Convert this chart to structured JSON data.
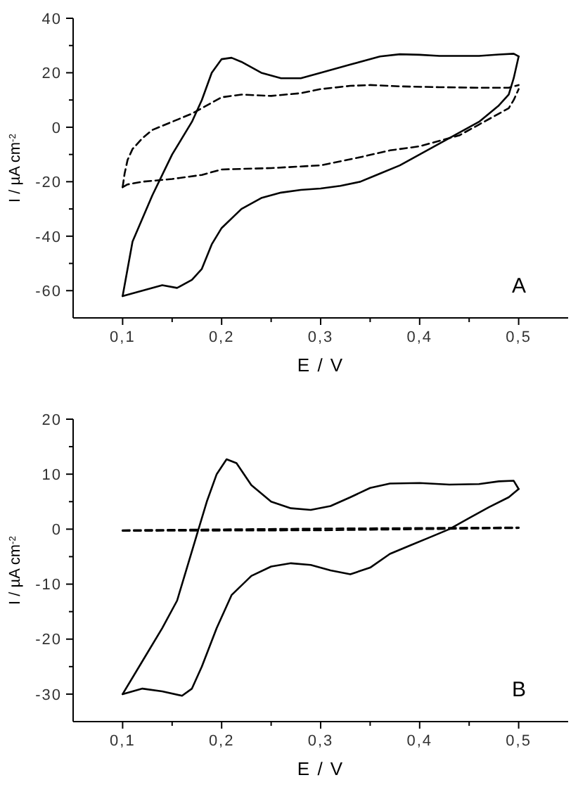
{
  "chart_data": [
    {
      "type": "line",
      "xlabel": "E / V",
      "ylabel": "I / µA cm$^{-2}$",
      "annotations": [
        "A"
      ],
      "xlim": [
        0.05,
        0.55
      ],
      "ylim": [
        -70,
        40
      ],
      "xticks": [
        {
          "value": 0.1,
          "label": "0,1"
        },
        {
          "value": 0.15,
          "label": null
        },
        {
          "value": 0.2,
          "label": "0,2"
        },
        {
          "value": 0.25,
          "label": null
        },
        {
          "value": 0.3,
          "label": "0,3"
        },
        {
          "value": 0.35,
          "label": null
        },
        {
          "value": 0.4,
          "label": "0,4"
        },
        {
          "value": 0.45,
          "label": null
        },
        {
          "value": 0.5,
          "label": "0,5"
        }
      ],
      "yticks": [
        -60,
        {
          "value": -50,
          "label": null
        },
        -40,
        {
          "value": -30,
          "label": null
        },
        -20,
        {
          "value": -10,
          "label": null
        },
        0,
        {
          "value": 10,
          "label": null
        },
        20,
        {
          "value": 30,
          "label": null
        },
        40
      ],
      "grid": false,
      "series": [
        {
          "color": "#000000",
          "line_style": "solid",
          "x": [
            0.1,
            0.11,
            0.13,
            0.15,
            0.17,
            0.18,
            0.19,
            0.2,
            0.21,
            0.22,
            0.24,
            0.26,
            0.28,
            0.3,
            0.33,
            0.36,
            0.38,
            0.4,
            0.42,
            0.46,
            0.48,
            0.495,
            0.5
          ],
          "values": [
            -62,
            -42,
            -25,
            -10,
            2,
            10,
            20,
            25,
            25.5,
            24,
            20,
            18,
            18,
            20,
            23,
            26,
            26.8,
            26.6,
            26.2,
            26.2,
            26.7,
            27,
            26
          ]
        },
        {
          "color": "#000000",
          "line_style": "solid",
          "x": [
            0.1,
            0.12,
            0.14,
            0.155,
            0.17,
            0.18,
            0.19,
            0.2,
            0.22,
            0.24,
            0.26,
            0.28,
            0.3,
            0.32,
            0.34,
            0.36,
            0.38,
            0.4,
            0.42,
            0.44,
            0.46,
            0.48,
            0.49,
            0.495,
            0.5
          ],
          "values": [
            -62,
            -60,
            -58,
            -59,
            -56,
            -52,
            -43,
            -37,
            -30,
            -26,
            -24,
            -23,
            -22.5,
            -21.5,
            -20,
            -17,
            -14,
            -10,
            -6,
            -2,
            2,
            8,
            12,
            18,
            26
          ]
        },
        {
          "color": "#000000",
          "line_style": "dashed",
          "x": [
            0.1,
            0.102,
            0.105,
            0.11,
            0.12,
            0.13,
            0.15,
            0.17,
            0.19,
            0.2,
            0.22,
            0.25,
            0.28,
            0.3,
            0.33,
            0.35,
            0.38,
            0.42,
            0.46,
            0.49,
            0.5
          ],
          "values": [
            -22,
            -17,
            -12,
            -8,
            -4,
            -1,
            2,
            5,
            9,
            11,
            12,
            11.5,
            12.5,
            14,
            15.2,
            15.5,
            15,
            14.7,
            14.5,
            14.5,
            15.5
          ]
        },
        {
          "color": "#000000",
          "line_style": "dashed",
          "x": [
            0.1,
            0.105,
            0.12,
            0.15,
            0.18,
            0.2,
            0.25,
            0.3,
            0.34,
            0.37,
            0.4,
            0.42,
            0.44,
            0.46,
            0.48,
            0.49,
            0.495,
            0.5
          ],
          "values": [
            -22,
            -21,
            -20,
            -19,
            -17.5,
            -15.5,
            -15,
            -14,
            -11,
            -8.5,
            -7,
            -5,
            -3,
            1,
            5,
            7,
            10,
            14
          ]
        }
      ]
    },
    {
      "type": "line",
      "xlabel": "E / V",
      "ylabel": "I / µA cm$^{-2}$",
      "annotations": [
        "B"
      ],
      "xlim": [
        0.05,
        0.55
      ],
      "ylim": [
        -35,
        20
      ],
      "xticks": [
        {
          "value": 0.1,
          "label": "0,1"
        },
        {
          "value": 0.15,
          "label": null
        },
        {
          "value": 0.2,
          "label": "0,2"
        },
        {
          "value": 0.25,
          "label": null
        },
        {
          "value": 0.3,
          "label": "0,3"
        },
        {
          "value": 0.35,
          "label": null
        },
        {
          "value": 0.4,
          "label": "0,4"
        },
        {
          "value": 0.45,
          "label": null
        },
        {
          "value": 0.5,
          "label": "0,5"
        }
      ],
      "yticks": [
        -30,
        {
          "value": -25,
          "label": null
        },
        -20,
        {
          "value": -15,
          "label": null
        },
        -10,
        {
          "value": -5,
          "label": null
        },
        0,
        {
          "value": 5,
          "label": null
        },
        10,
        {
          "value": 15,
          "label": null
        },
        20
      ],
      "grid": false,
      "series": [
        {
          "color": "#000000",
          "line_style": "solid",
          "x": [
            0.1,
            0.12,
            0.14,
            0.155,
            0.165,
            0.175,
            0.185,
            0.195,
            0.205,
            0.215,
            0.23,
            0.25,
            0.27,
            0.29,
            0.31,
            0.33,
            0.35,
            0.37,
            0.4,
            0.43,
            0.46,
            0.48,
            0.495,
            0.5
          ],
          "values": [
            -30,
            -24,
            -18,
            -13,
            -7,
            -1,
            5,
            10,
            12.7,
            12,
            8,
            5,
            3.8,
            3.5,
            4.2,
            5.8,
            7.5,
            8.3,
            8.4,
            8.1,
            8.2,
            8.7,
            8.8,
            7.3
          ]
        },
        {
          "color": "#000000",
          "line_style": "solid",
          "x": [
            0.1,
            0.12,
            0.14,
            0.16,
            0.17,
            0.18,
            0.195,
            0.21,
            0.23,
            0.25,
            0.27,
            0.29,
            0.31,
            0.33,
            0.35,
            0.37,
            0.39,
            0.41,
            0.43,
            0.45,
            0.47,
            0.49,
            0.5
          ],
          "values": [
            -30,
            -29,
            -29.5,
            -30.3,
            -29,
            -25,
            -18,
            -12,
            -8.5,
            -6.8,
            -6.2,
            -6.5,
            -7.5,
            -8.2,
            -7,
            -4.5,
            -3,
            -1.5,
            0,
            2,
            4,
            5.8,
            7.3
          ]
        },
        {
          "color": "#000000",
          "line_style": "dashed",
          "x": [
            0.1,
            0.3,
            0.5
          ],
          "values": [
            -0.3,
            -0.2,
            0.2
          ]
        },
        {
          "color": "#000000",
          "line_style": "dashed",
          "x": [
            0.1,
            0.3,
            0.5
          ],
          "values": [
            -0.2,
            0.1,
            0.3
          ]
        }
      ]
    }
  ]
}
